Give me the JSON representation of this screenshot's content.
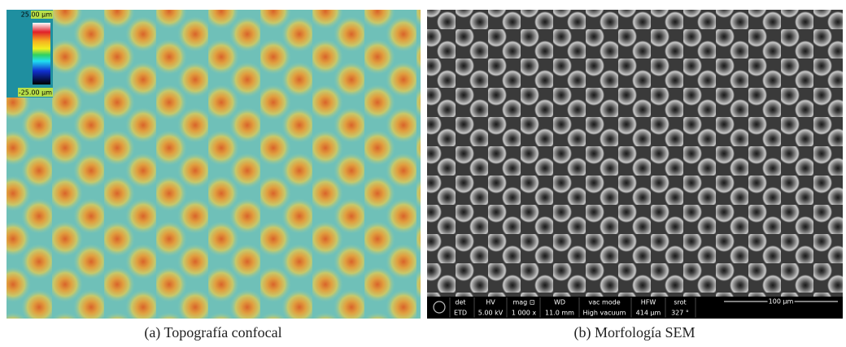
{
  "figure": {
    "panels": [
      {
        "caption": "(a) Topografía confocal",
        "colorbar": {
          "max_label": "25.00 µm",
          "min_label": "-25.00 µm"
        }
      },
      {
        "caption": "(b) Morfología SEM",
        "databar": {
          "fields": [
            {
              "label": "det",
              "value": "ETD"
            },
            {
              "label": "HV",
              "value": "5.00 kV"
            },
            {
              "label": "mag ⊡",
              "value": "1 000 x"
            },
            {
              "label": "WD",
              "value": "11.0 mm"
            },
            {
              "label": "vac mode",
              "value": "High vacuum"
            },
            {
              "label": "HFW",
              "value": "414 µm"
            },
            {
              "label": "srot",
              "value": "327 °"
            }
          ],
          "scale_bar": "100 µm"
        }
      }
    ]
  }
}
